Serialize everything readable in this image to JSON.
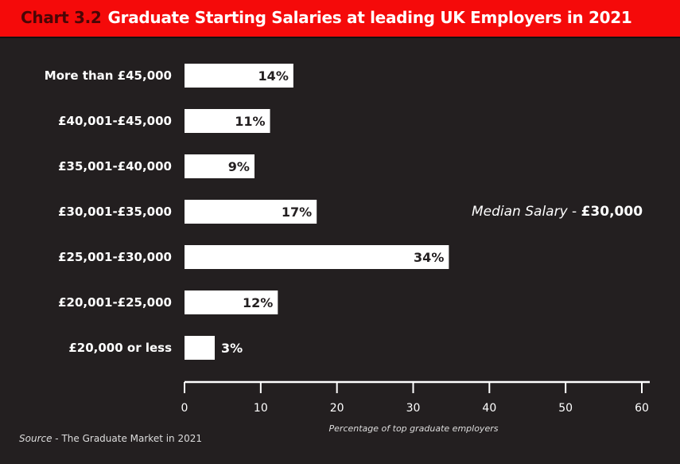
{
  "title": {
    "number": "Chart 3.2",
    "text": "Graduate Starting Salaries at leading UK Employers in 2021"
  },
  "colors": {
    "title_bar": "#f50a0a",
    "chart_number": "#4a0606",
    "background": "#231f20",
    "bars": "#ffffff",
    "value_labels": "#231f20"
  },
  "chart_data": {
    "type": "bar",
    "orientation": "horizontal",
    "title": "Graduate Starting Salaries at leading UK Employers in 2021",
    "categories": [
      "More than £45,000",
      "£40,001-£45,000",
      "£35,001-£40,000",
      "£30,001-£35,000",
      "£25,001-£30,000",
      "£20,001-£25,000",
      "£20,000 or less"
    ],
    "values": [
      14,
      11,
      9,
      17,
      34,
      12,
      3
    ],
    "value_labels": [
      "14%",
      "11%",
      "9%",
      "17%",
      "34%",
      "12%",
      "3%"
    ],
    "xlabel": "Percentage of top graduate employers",
    "xlim": [
      0,
      60
    ],
    "xticks": [
      "0",
      "10",
      "20",
      "30",
      "40",
      "50",
      "60"
    ],
    "grid": false,
    "annotation": {
      "label": "Median Salary",
      "separator": " - ",
      "value": "£30,000"
    }
  },
  "source": {
    "label": "Source",
    "separator": " - ",
    "text": "The Graduate Market in 2021"
  }
}
